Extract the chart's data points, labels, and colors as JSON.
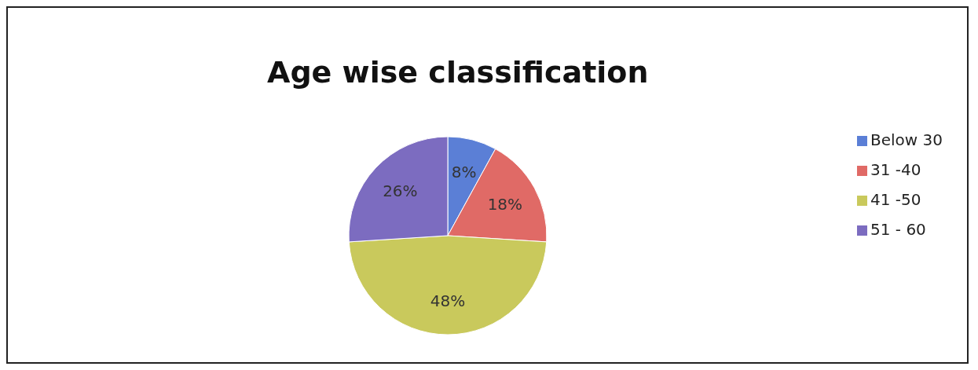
{
  "chart_data": {
    "type": "pie",
    "title": "Age wise classification",
    "categories": [
      "Below 30",
      "31 -40",
      "41 -50",
      "51 - 60"
    ],
    "values": [
      8,
      18,
      48,
      26
    ],
    "value_labels": [
      "8%",
      "18%",
      "48%",
      "26%"
    ],
    "colors": [
      "#5b7fd6",
      "#e06a66",
      "#c9c95c",
      "#7c6cc0"
    ],
    "legend": "right"
  }
}
